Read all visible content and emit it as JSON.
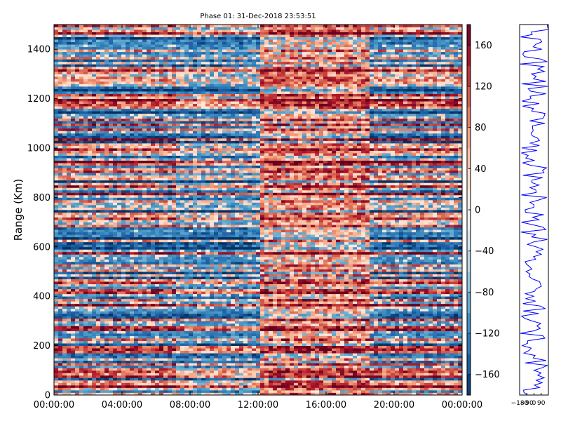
{
  "chart_data": [
    {
      "type": "heatmap",
      "title": "Phase 01: 31-Dec-2018 23:53:51",
      "xlabel": "",
      "ylabel": "Range (Km)",
      "x_ticks": [
        "00:00:00",
        "04:00:00",
        "08:00:00",
        "12:00:00",
        "16:00:00",
        "20:00:00",
        "00:00:00"
      ],
      "x_range_hours": [
        0,
        24
      ],
      "y_ticks": [
        0,
        200,
        400,
        600,
        800,
        1000,
        1200,
        1400
      ],
      "ylim": [
        0,
        1500
      ],
      "grid": false,
      "colorscale": "RdBu_r",
      "colors": {
        "low": "#053061",
        "mid": "#f7f7f7",
        "high": "#67001f"
      },
      "colorbar": {
        "range": [
          -180,
          180
        ],
        "ticks": [
          -160,
          -120,
          -80,
          -40,
          0,
          40,
          80,
          120,
          160
        ]
      },
      "value_description": "phase values in the range -180 to 180, bands alternating between red (positive) and blue (negative)"
    },
    {
      "type": "line",
      "xlabel": "",
      "ylabel": "",
      "x_tick_labels": [
        "-180",
        "-90",
        "0",
        "90"
      ],
      "xlim": [
        -180,
        180
      ],
      "ylim": [
        0,
        1500
      ],
      "series": [
        {
          "color": "#0000ff"
        }
      ]
    }
  ]
}
